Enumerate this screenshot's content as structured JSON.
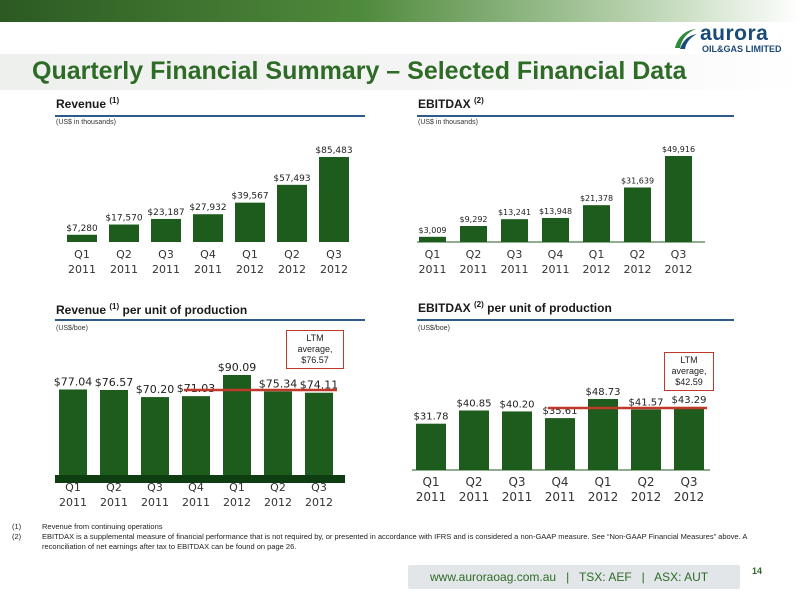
{
  "header": {
    "title": "Quarterly Financial Summary – Selected Financial Data",
    "logo": {
      "brand": "aurora",
      "sub": "OIL&GAS LIMITED",
      "icon": "aurora-swoosh-logo"
    }
  },
  "panels": {
    "revenue": {
      "title": "Revenue",
      "sup": "(1)",
      "unit": "(US$ in thousands)"
    },
    "ebitdax": {
      "title": "EBITDAX",
      "sup": "(2)",
      "unit": "(US$ in thousands)"
    },
    "revenue_unit": {
      "title": "Revenue",
      "sup": "(1)",
      "suffix": " per unit of production",
      "unit": "(US$/boe)",
      "ltm": [
        "LTM",
        "average,",
        "$76.57"
      ]
    },
    "ebitdax_unit": {
      "title": "EBITDAX",
      "sup": "(2)",
      "suffix": " per unit of production",
      "unit": "(US$/boe)",
      "ltm": [
        "LTM",
        "average,",
        "$42.59"
      ]
    }
  },
  "chart_data": [
    {
      "type": "bar",
      "title": "Revenue (1)",
      "subtitle": "(US$ in thousands)",
      "categories": [
        "Q1 2011",
        "Q2 2011",
        "Q3 2011",
        "Q4 2011",
        "Q1 2012",
        "Q2 2012",
        "Q3 2012"
      ],
      "values": [
        7280,
        17570,
        23187,
        27932,
        39567,
        57493,
        85483
      ],
      "labels": [
        "$7,280",
        "$17,570",
        "$23,187",
        "$27,932",
        "$39,567",
        "$57,493",
        "$85,483"
      ],
      "bar_color": "#1d5c1d",
      "ylim": [
        0,
        85483
      ]
    },
    {
      "type": "bar",
      "title": "EBITDAX (2)",
      "subtitle": "(US$ in thousands)",
      "categories": [
        "Q1 2011",
        "Q2 2011",
        "Q3 2011",
        "Q4 2011",
        "Q1 2012",
        "Q2 2012",
        "Q3 2012"
      ],
      "values": [
        3009,
        9292,
        13241,
        13948,
        21378,
        31639,
        49916
      ],
      "labels": [
        "$3,009",
        "$9,292",
        "$13,241",
        "$13,948",
        "$21,378",
        "$31,639",
        "$49,916"
      ],
      "bar_color": "#1d5c1d",
      "ylim": [
        0,
        49916
      ]
    },
    {
      "type": "bar",
      "title": "Revenue (1) per unit of production",
      "subtitle": "(US$/boe)",
      "categories": [
        "Q1 2011",
        "Q2 2011",
        "Q3 2011",
        "Q4 2011",
        "Q1 2012",
        "Q2 2012",
        "Q3 2012"
      ],
      "values": [
        77.04,
        76.57,
        70.2,
        71.03,
        90.09,
        75.34,
        74.11
      ],
      "labels": [
        "$77.04",
        "$76.57",
        "$70.20",
        "$71.03",
        "$90.09",
        "$75.34",
        "$74.11"
      ],
      "bar_color": "#1d5c1d",
      "ylim": [
        0,
        90.09
      ],
      "reference_line": {
        "value": 76.57,
        "label": "LTM average, $76.57",
        "from": "Q4 2011",
        "to": "Q3 2012",
        "color": "#c0392b"
      }
    },
    {
      "type": "bar",
      "title": "EBITDAX (2) per unit of production",
      "subtitle": "(US$/boe)",
      "categories": [
        "Q1 2011",
        "Q2 2011",
        "Q3 2011",
        "Q4 2011",
        "Q1 2012",
        "Q2 2012",
        "Q3 2012"
      ],
      "values": [
        31.78,
        40.85,
        40.2,
        35.61,
        48.73,
        41.57,
        43.29
      ],
      "labels": [
        "$31.78",
        "$40.85",
        "$40.20",
        "$35.61",
        "$48.73",
        "$41.57",
        "$43.29"
      ],
      "bar_color": "#1d5c1d",
      "ylim": [
        0,
        48.73
      ],
      "reference_line": {
        "value": 42.59,
        "label": "LTM average, $42.59",
        "from": "Q4 2011",
        "to": "Q3 2012",
        "color": "#c0392b"
      }
    }
  ],
  "footnotes": [
    {
      "num": "(1)",
      "text": "Revenue from continuing operations"
    },
    {
      "num": "(2)",
      "text": "EBITDAX is a supplemental measure of financial performance that is not required by, or presented in accordance with IFRS and is considered a non-GAAP measure. See “Non-GAAP Financial Measures” above. A reconciliation of net earnings after tax to EBITDAX can be found on page 26."
    }
  ],
  "footer": {
    "text": "www.auroraoag.com.au   |   TSX: AEF   |   ASX: AUT",
    "page": "14"
  },
  "colors": {
    "title_green": "#2e6b26",
    "bar_green": "#1d5c1d",
    "rule_blue": "#2e5a8a",
    "ltm_red": "#c0392b"
  }
}
